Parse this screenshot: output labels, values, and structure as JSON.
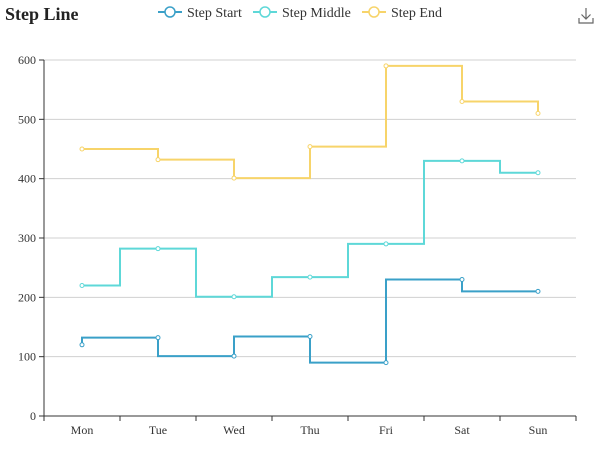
{
  "chart_data": {
    "type": "line",
    "title": "Step Line",
    "categories": [
      "Mon",
      "Tue",
      "Wed",
      "Thu",
      "Fri",
      "Sat",
      "Sun"
    ],
    "ylim": [
      0,
      600
    ],
    "yticks": [
      0,
      100,
      200,
      300,
      400,
      500,
      600
    ],
    "grid": true,
    "legend_position": "top-center",
    "series": [
      {
        "name": "Step Start",
        "step": "start",
        "color": "#3aa0c8",
        "values": [
          120,
          132,
          101,
          134,
          90,
          230,
          210
        ]
      },
      {
        "name": "Step Middle",
        "step": "middle",
        "color": "#5ed8d8",
        "values": [
          220,
          282,
          201,
          234,
          290,
          430,
          410
        ]
      },
      {
        "name": "Step End",
        "step": "end",
        "color": "#f7d46a",
        "values": [
          450,
          432,
          401,
          454,
          590,
          530,
          510
        ]
      }
    ]
  },
  "toolbar": {
    "save_icon": "download-icon"
  }
}
